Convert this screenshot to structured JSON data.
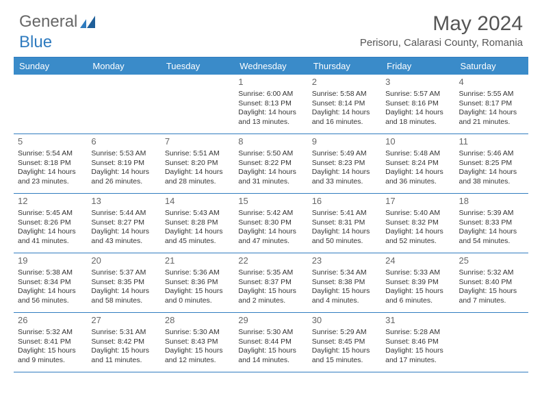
{
  "logo": {
    "text1": "General",
    "text2": "Blue"
  },
  "title": "May 2024",
  "location": "Perisoru, Calarasi County, Romania",
  "colors": {
    "header_bg": "#3a8bc9",
    "header_text": "#ffffff",
    "border": "#2f7bbf",
    "text": "#333333",
    "daynum": "#666666",
    "logo_gray": "#666666",
    "logo_blue": "#2f7bbf"
  },
  "dayNames": [
    "Sunday",
    "Monday",
    "Tuesday",
    "Wednesday",
    "Thursday",
    "Friday",
    "Saturday"
  ],
  "weeks": [
    [
      null,
      null,
      null,
      {
        "n": "1",
        "sr": "6:00 AM",
        "ss": "8:13 PM",
        "dl": "14 hours and 13 minutes."
      },
      {
        "n": "2",
        "sr": "5:58 AM",
        "ss": "8:14 PM",
        "dl": "14 hours and 16 minutes."
      },
      {
        "n": "3",
        "sr": "5:57 AM",
        "ss": "8:16 PM",
        "dl": "14 hours and 18 minutes."
      },
      {
        "n": "4",
        "sr": "5:55 AM",
        "ss": "8:17 PM",
        "dl": "14 hours and 21 minutes."
      }
    ],
    [
      {
        "n": "5",
        "sr": "5:54 AM",
        "ss": "8:18 PM",
        "dl": "14 hours and 23 minutes."
      },
      {
        "n": "6",
        "sr": "5:53 AM",
        "ss": "8:19 PM",
        "dl": "14 hours and 26 minutes."
      },
      {
        "n": "7",
        "sr": "5:51 AM",
        "ss": "8:20 PM",
        "dl": "14 hours and 28 minutes."
      },
      {
        "n": "8",
        "sr": "5:50 AM",
        "ss": "8:22 PM",
        "dl": "14 hours and 31 minutes."
      },
      {
        "n": "9",
        "sr": "5:49 AM",
        "ss": "8:23 PM",
        "dl": "14 hours and 33 minutes."
      },
      {
        "n": "10",
        "sr": "5:48 AM",
        "ss": "8:24 PM",
        "dl": "14 hours and 36 minutes."
      },
      {
        "n": "11",
        "sr": "5:46 AM",
        "ss": "8:25 PM",
        "dl": "14 hours and 38 minutes."
      }
    ],
    [
      {
        "n": "12",
        "sr": "5:45 AM",
        "ss": "8:26 PM",
        "dl": "14 hours and 41 minutes."
      },
      {
        "n": "13",
        "sr": "5:44 AM",
        "ss": "8:27 PM",
        "dl": "14 hours and 43 minutes."
      },
      {
        "n": "14",
        "sr": "5:43 AM",
        "ss": "8:28 PM",
        "dl": "14 hours and 45 minutes."
      },
      {
        "n": "15",
        "sr": "5:42 AM",
        "ss": "8:30 PM",
        "dl": "14 hours and 47 minutes."
      },
      {
        "n": "16",
        "sr": "5:41 AM",
        "ss": "8:31 PM",
        "dl": "14 hours and 50 minutes."
      },
      {
        "n": "17",
        "sr": "5:40 AM",
        "ss": "8:32 PM",
        "dl": "14 hours and 52 minutes."
      },
      {
        "n": "18",
        "sr": "5:39 AM",
        "ss": "8:33 PM",
        "dl": "14 hours and 54 minutes."
      }
    ],
    [
      {
        "n": "19",
        "sr": "5:38 AM",
        "ss": "8:34 PM",
        "dl": "14 hours and 56 minutes."
      },
      {
        "n": "20",
        "sr": "5:37 AM",
        "ss": "8:35 PM",
        "dl": "14 hours and 58 minutes."
      },
      {
        "n": "21",
        "sr": "5:36 AM",
        "ss": "8:36 PM",
        "dl": "15 hours and 0 minutes."
      },
      {
        "n": "22",
        "sr": "5:35 AM",
        "ss": "8:37 PM",
        "dl": "15 hours and 2 minutes."
      },
      {
        "n": "23",
        "sr": "5:34 AM",
        "ss": "8:38 PM",
        "dl": "15 hours and 4 minutes."
      },
      {
        "n": "24",
        "sr": "5:33 AM",
        "ss": "8:39 PM",
        "dl": "15 hours and 6 minutes."
      },
      {
        "n": "25",
        "sr": "5:32 AM",
        "ss": "8:40 PM",
        "dl": "15 hours and 7 minutes."
      }
    ],
    [
      {
        "n": "26",
        "sr": "5:32 AM",
        "ss": "8:41 PM",
        "dl": "15 hours and 9 minutes."
      },
      {
        "n": "27",
        "sr": "5:31 AM",
        "ss": "8:42 PM",
        "dl": "15 hours and 11 minutes."
      },
      {
        "n": "28",
        "sr": "5:30 AM",
        "ss": "8:43 PM",
        "dl": "15 hours and 12 minutes."
      },
      {
        "n": "29",
        "sr": "5:30 AM",
        "ss": "8:44 PM",
        "dl": "15 hours and 14 minutes."
      },
      {
        "n": "30",
        "sr": "5:29 AM",
        "ss": "8:45 PM",
        "dl": "15 hours and 15 minutes."
      },
      {
        "n": "31",
        "sr": "5:28 AM",
        "ss": "8:46 PM",
        "dl": "15 hours and 17 minutes."
      },
      null
    ]
  ],
  "labels": {
    "sunrise": "Sunrise:",
    "sunset": "Sunset:",
    "daylight": "Daylight:"
  }
}
